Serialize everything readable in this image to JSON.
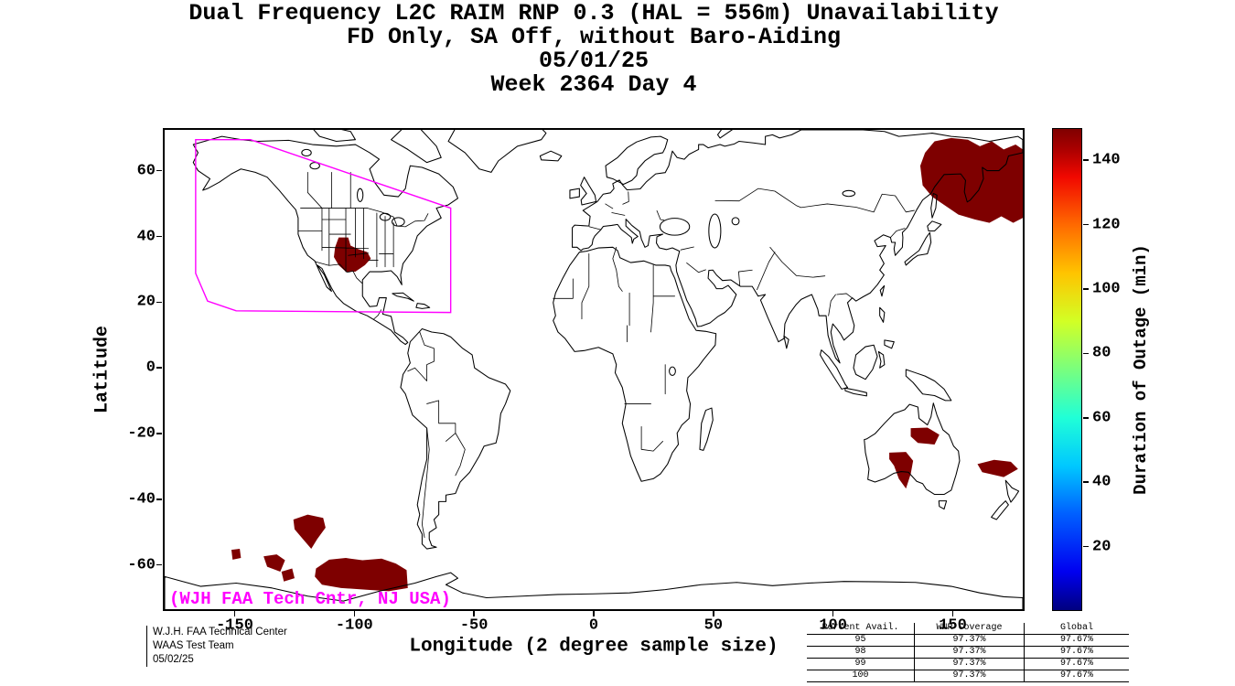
{
  "title": {
    "line1": "Dual Frequency L2C RAIM RNP 0.3 (HAL = 556m) Unavailability",
    "line2": "FD Only, SA Off, without Baro-Aiding",
    "line3": "05/01/25",
    "line4": "Week 2364 Day 4"
  },
  "axes": {
    "x_label": "Longitude (2 degree sample size)",
    "y_label": "Latitude",
    "x_ticks": [
      -150,
      -100,
      -50,
      0,
      50,
      100,
      150
    ],
    "y_ticks": [
      60,
      40,
      20,
      0,
      -20,
      -40,
      -60
    ],
    "lon_range": [
      -180,
      180
    ],
    "lat_range": [
      -74,
      73
    ]
  },
  "colorbar": {
    "label": "Duration of Outage (min)",
    "ticks": [
      20,
      40,
      60,
      80,
      100,
      120,
      140
    ],
    "range": [
      0,
      150
    ],
    "colormap": "jet"
  },
  "annotations": {
    "map_credit": "(WJH FAA Tech Cntr, NJ USA)",
    "credit_color": "#ff00ff"
  },
  "footer": {
    "left_lines": [
      "W.J.H. FAA Technical Center",
      "WAAS Test Team",
      "05/02/25"
    ],
    "stats_table": {
      "header": [
        "Percent Avail.",
        "WNR Coverage",
        "Global"
      ],
      "rows": [
        [
          "95",
          "97.37%",
          "97.67%"
        ],
        [
          "98",
          "97.37%",
          "97.67%"
        ],
        [
          "99",
          "97.37%",
          "97.67%"
        ],
        [
          "100",
          "97.37%",
          "97.67%"
        ]
      ]
    }
  },
  "chart_data": {
    "type": "heatmap",
    "description": "Equirectangular world map; dark red filled regions mark areas where RAIM outage duration reaches the colorbar maximum (~150 min). Magenta outline is the WAAS service boundary.",
    "projection": "equirectangular",
    "lon_range": [
      -180,
      180
    ],
    "lat_range": [
      -74,
      73
    ],
    "outage_color": "#7e0000",
    "outage_value_minutes": 150,
    "outage_regions": [
      {
        "name": "us-south-central",
        "polygon": [
          [
            -107,
            40
          ],
          [
            -103,
            40
          ],
          [
            -102,
            37.5
          ],
          [
            -99,
            36.5
          ],
          [
            -95,
            35.5
          ],
          [
            -93.5,
            33.5
          ],
          [
            -96,
            31.5
          ],
          [
            -100,
            29.5
          ],
          [
            -104,
            29.5
          ],
          [
            -107,
            31.5
          ],
          [
            -109,
            34
          ],
          [
            -108.5,
            37
          ]
        ]
      },
      {
        "name": "northeast-russia",
        "polygon": [
          [
            137,
            62
          ],
          [
            139,
            66
          ],
          [
            143,
            69.5
          ],
          [
            150,
            70.5
          ],
          [
            157,
            70
          ],
          [
            162,
            68
          ],
          [
            167,
            69.5
          ],
          [
            172,
            67
          ],
          [
            177,
            68.5
          ],
          [
            180,
            67
          ],
          [
            180,
            46
          ],
          [
            176,
            44.5
          ],
          [
            171,
            46.5
          ],
          [
            166,
            44.5
          ],
          [
            160,
            45.5
          ],
          [
            153,
            47
          ],
          [
            147,
            50
          ],
          [
            142,
            52.5
          ],
          [
            138,
            56
          ]
        ]
      },
      {
        "name": "central-east-australia",
        "polygon": [
          [
            133,
            -18.5
          ],
          [
            140,
            -18.3
          ],
          [
            145,
            -20.5
          ],
          [
            143,
            -23.5
          ],
          [
            136,
            -23
          ],
          [
            133,
            -21
          ]
        ]
      },
      {
        "name": "south-australia",
        "polygon": [
          [
            124,
            -26
          ],
          [
            131,
            -25.8
          ],
          [
            134,
            -28.5
          ],
          [
            133,
            -32.5
          ],
          [
            131,
            -37
          ],
          [
            128,
            -34
          ],
          [
            126,
            -30
          ],
          [
            124,
            -28
          ]
        ]
      },
      {
        "name": "tasman-northeast",
        "polygon": [
          [
            161,
            -29.5
          ],
          [
            168,
            -28.2
          ],
          [
            175,
            -28.8
          ],
          [
            178,
            -31
          ],
          [
            172,
            -33.5
          ],
          [
            163,
            -32
          ]
        ]
      },
      {
        "name": "south-pacific-large",
        "polygon": [
          [
            -116.5,
            -61.5
          ],
          [
            -111,
            -58.8
          ],
          [
            -104,
            -58.3
          ],
          [
            -97,
            -59
          ],
          [
            -89,
            -58.5
          ],
          [
            -83,
            -60
          ],
          [
            -78.5,
            -62
          ],
          [
            -78,
            -67.5
          ],
          [
            -86,
            -68.5
          ],
          [
            -96,
            -68
          ],
          [
            -106,
            -67.5
          ],
          [
            -114,
            -66.5
          ],
          [
            -117,
            -64
          ]
        ]
      },
      {
        "name": "south-pacific-mid",
        "polygon": [
          [
            -126,
            -46.5
          ],
          [
            -120,
            -45
          ],
          [
            -113.5,
            -46
          ],
          [
            -112.5,
            -49
          ],
          [
            -116,
            -52.5
          ],
          [
            -118.5,
            -55.5
          ],
          [
            -122,
            -52.5
          ],
          [
            -125.5,
            -49.5
          ]
        ]
      },
      {
        "name": "south-pacific-small-1",
        "polygon": [
          [
            -152,
            -55.8
          ],
          [
            -148.5,
            -55.5
          ],
          [
            -148,
            -58.3
          ],
          [
            -151.5,
            -58.8
          ]
        ]
      },
      {
        "name": "south-pacific-small-2",
        "polygon": [
          [
            -138.5,
            -57.8
          ],
          [
            -133,
            -57.2
          ],
          [
            -129.5,
            -59
          ],
          [
            -131.5,
            -62.5
          ],
          [
            -137,
            -61
          ]
        ]
      },
      {
        "name": "south-pacific-small-3",
        "polygon": [
          [
            -131,
            -62.5
          ],
          [
            -126.5,
            -61.5
          ],
          [
            -125.5,
            -64.5
          ],
          [
            -130,
            -65.5
          ]
        ]
      }
    ],
    "waas_boundary": {
      "color": "#ff00ff",
      "polygon": [
        [
          -167,
          70
        ],
        [
          -144,
          70
        ],
        [
          -60,
          49
        ],
        [
          -60,
          17
        ],
        [
          -150,
          17.5
        ],
        [
          -162,
          20.5
        ],
        [
          -167,
          29
        ]
      ]
    }
  }
}
